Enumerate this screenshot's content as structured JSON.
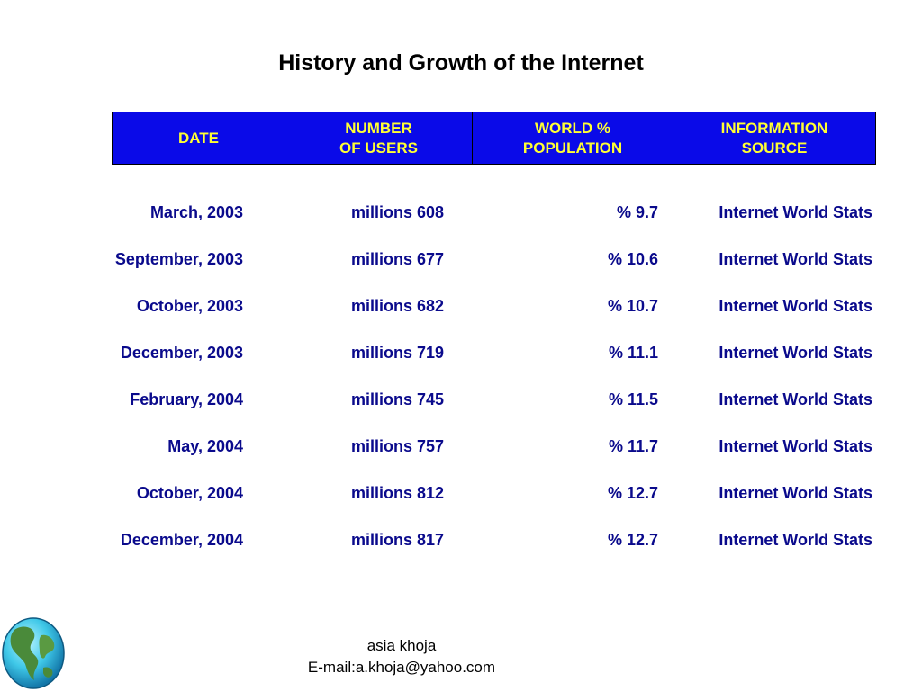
{
  "title": "History and Growth of the Internet",
  "header": {
    "date": [
      "DATE"
    ],
    "users": [
      "NUMBER",
      "OF USERS"
    ],
    "population": [
      "WORLD %",
      "POPULATION"
    ],
    "source": [
      "INFORMATION",
      "SOURCE"
    ]
  },
  "rows": [
    {
      "date": "March, 2003",
      "users": "millions 608",
      "pct": "% 9.7",
      "source": "Internet World Stats"
    },
    {
      "date": "September, 2003",
      "users": "millions 677",
      "pct": "% 10.6",
      "source": "Internet World Stats"
    },
    {
      "date": "October, 2003",
      "users": "millions 682",
      "pct": "% 10.7",
      "source": "Internet World Stats"
    },
    {
      "date": "December, 2003",
      "users": "millions 719",
      "pct": "% 11.1",
      "source": "Internet World Stats"
    },
    {
      "date": "February, 2004",
      "users": "millions 745",
      "pct": "% 11.5",
      "source": "Internet World Stats"
    },
    {
      "date": "May, 2004",
      "users": "millions 757",
      "pct": "% 11.7",
      "source": "Internet World Stats"
    },
    {
      "date": "October, 2004",
      "users": "millions 812",
      "pct": "% 12.7",
      "source": "Internet World Stats"
    },
    {
      "date": "December, 2004",
      "users": "millions 817",
      "pct": "% 12.7",
      "source": "Internet World Stats"
    }
  ],
  "footer": {
    "name": "asia khoja",
    "email": "E-mail:a.khoja@yahoo.com"
  },
  "icons": {
    "globe": "globe-icon"
  },
  "colors": {
    "header_bg": "#0a0ae8",
    "header_text": "#ffff33",
    "row_text": "#0a0a8c"
  }
}
